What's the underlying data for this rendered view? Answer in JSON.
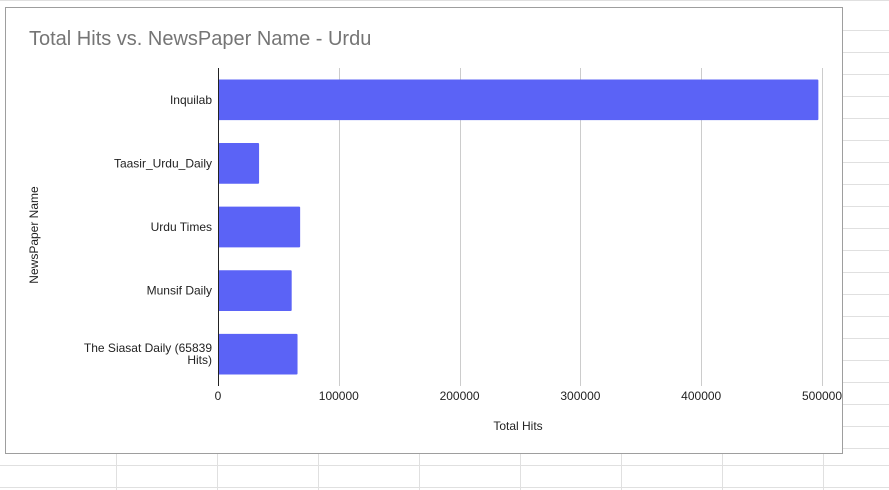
{
  "chart_data": {
    "type": "bar",
    "orientation": "horizontal",
    "title": "Total Hits vs. NewsPaper Name - Urdu",
    "xlabel": "Total Hits",
    "ylabel": "NewsPaper Name",
    "categories": [
      "Inquilab",
      "Taasir_Urdu_Daily",
      "Urdu Times",
      "Munsif Daily",
      "The Siasat Daily (65839 Hits)"
    ],
    "category_lines": [
      [
        "Inquilab"
      ],
      [
        "Taasir_Urdu_Daily"
      ],
      [
        "Urdu Times"
      ],
      [
        "Munsif Daily"
      ],
      [
        "The Siasat Daily (65839",
        "Hits)"
      ]
    ],
    "values": [
      497000,
      34000,
      68000,
      61000,
      65839
    ],
    "xlim": [
      0,
      500000
    ],
    "xticks": [
      "0",
      "100000",
      "200000",
      "300000",
      "400000",
      "500000"
    ],
    "xtick_values": [
      0,
      100000,
      200000,
      300000,
      400000,
      500000
    ],
    "grid": true,
    "legend": "none",
    "bar_color": "#5b63f6"
  }
}
